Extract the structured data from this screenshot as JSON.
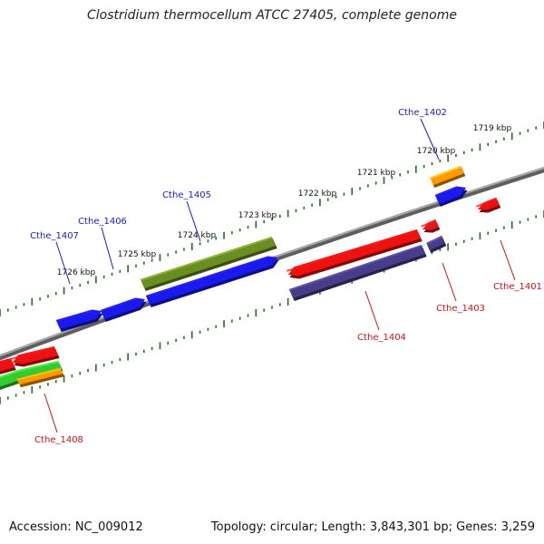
{
  "title": "Clostridium thermocellum ATCC 27405, complete genome",
  "accession": "Accession: NC_009012",
  "summary": "Topology: circular; Length: 3,843,301 bp; Genes: 3,259",
  "scale": {
    "unit": "kbp",
    "labeled_ticks": [
      "1719 kbp",
      "1720 kbp",
      "1721 kbp",
      "1722 kbp",
      "1723 kbp",
      "1724 kbp",
      "1725 kbp",
      "1726 kbp"
    ]
  },
  "genes": [
    {
      "name": "Cthe_1401",
      "strand": "reverse",
      "color": "#ee1111"
    },
    {
      "name": "Cthe_1402",
      "strand": "forward",
      "color": "#1a1aee"
    },
    {
      "name": "Cthe_1403",
      "strand": "reverse",
      "color": "#e41a1a"
    },
    {
      "name": "Cthe_1404",
      "strand": "reverse",
      "color": "#ee1111"
    },
    {
      "name": "Cthe_1405",
      "strand": "forward",
      "color": "#1a1aee"
    },
    {
      "name": "Cthe_1406",
      "strand": "forward",
      "color": "#1a1aee"
    },
    {
      "name": "Cthe_1407",
      "strand": "forward",
      "color": "#1a1aee"
    },
    {
      "name": "Cthe_1408",
      "strand": "reverse",
      "color": "#ee1111"
    }
  ],
  "colors": {
    "forward_label": "#1a1acc",
    "reverse_label": "#cc1111",
    "backbone": "#808080",
    "ticks": "#1e6e1e",
    "olive": "#6b8e23",
    "orange": "#ff9900",
    "slate": "#483d8b",
    "green": "#33cc33"
  }
}
